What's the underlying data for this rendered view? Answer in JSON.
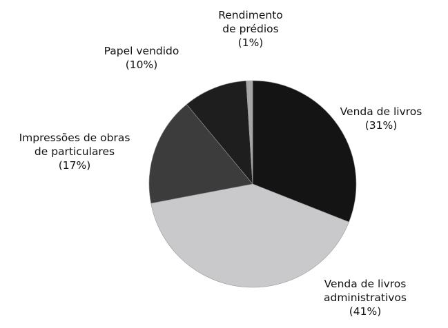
{
  "chart_data": {
    "type": "pie",
    "start": "top",
    "direction": "clockwise",
    "title": "",
    "slices": [
      {
        "label": [
          "Venda de livros",
          "(31%)"
        ],
        "value": 31,
        "color": "#141414"
      },
      {
        "label": [
          "Venda de livros",
          "administrativos",
          "(41%)"
        ],
        "value": 41,
        "color": "#c9c9cc"
      },
      {
        "label": [
          "Impressões de obras",
          "de particulares",
          "(17%)"
        ],
        "value": 17,
        "color": "#3c3c3c"
      },
      {
        "label": [
          "Papel vendido",
          "(10%)"
        ],
        "value": 10,
        "color": "#1e1e1e"
      },
      {
        "label": [
          "Rendimento",
          "de prédios",
          "(1%)"
        ],
        "value": 1,
        "color": "#a6a6a6"
      }
    ]
  }
}
